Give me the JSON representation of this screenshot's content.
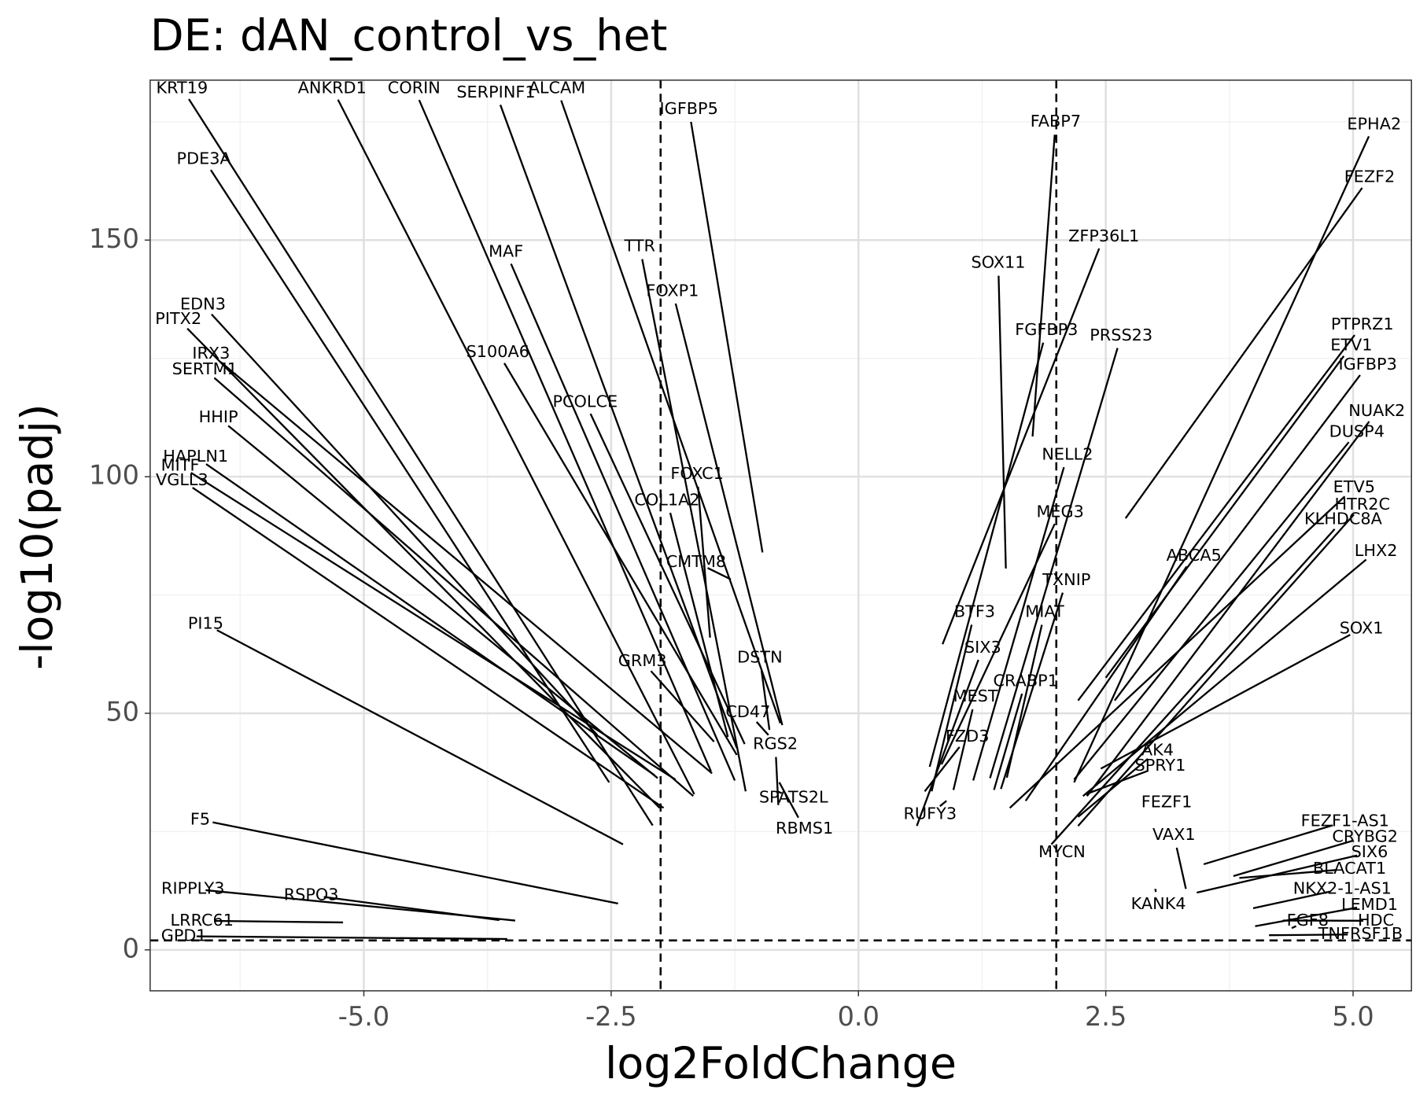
{
  "chart_data": {
    "type": "scatter",
    "title": "DE: dAN_control_vs_het",
    "x_label": "log2FoldChange",
    "y_label": "-log10(padj)",
    "xlim": [
      -7.16,
      5.59
    ],
    "ylim": [
      -8.65,
      183.8
    ],
    "xticks": [
      {
        "value": -5,
        "label": "-5.0"
      },
      {
        "value": -2.5,
        "label": "-2.5"
      },
      {
        "value": 0,
        "label": "0.0"
      },
      2.5,
      {
        "value": 5,
        "label": "5.0"
      }
    ],
    "yticks": [
      0,
      50,
      100,
      150
    ],
    "grid": true,
    "vlines": [
      -2,
      2
    ],
    "hline": 2,
    "labels": [
      "KRT19",
      "ANKRD1",
      "CORIN",
      "SERPINF1",
      "ALCAM",
      "IGFBP5",
      "PDE3A",
      "EDN3",
      "PITX2",
      "IRX3",
      "SERTM1",
      "HHIP",
      "HAPLN1",
      "MITF",
      "VGLL3",
      "PI15",
      "F5",
      "RIPPLY3",
      "RSPO3",
      "LRRC61",
      "GPD1",
      "MAF",
      "TTR",
      "FOXP1",
      "S100A6",
      "PCOLCE",
      "FOXC1",
      "COL1A2",
      "CMTM8",
      "GRM3",
      "DSTN",
      "CD47",
      "RGS2",
      "SPATS2L",
      "RBMS1",
      "FABP7",
      "EPHA2",
      "FEZF2",
      "ZFP36L1",
      "SOX11",
      "FGFBP3",
      "PRSS23",
      "PTPRZ1",
      "ETV1",
      "IGFBP3",
      "NUAK2",
      "DUSP4",
      "NELL2",
      "ETV5",
      "HTR2C",
      "KLHDC8A",
      "MEG3",
      "ABCA5",
      "LHX2",
      "TXNIP",
      "MIAT",
      "BTF3",
      "SOX1",
      "SIX3",
      "CRABP1",
      "MEST",
      "FZD3",
      "RUFY3",
      "AK4",
      "SPRY1",
      "FEZF1",
      "MYCN",
      "VAX1",
      "KANK4",
      "FEZF1-AS1",
      "CRYBG2",
      "SIX6",
      "BLACAT1",
      "NKX2-1-AS1",
      "LEMD1",
      "FGF8",
      "HDC",
      "TNFRSF1B"
    ],
    "x": [
      -2.08,
      -1.66,
      -1.49,
      -1.23,
      -0.79,
      -0.97,
      -2.52,
      -2.64,
      -2.01,
      -1.48,
      -1.67,
      -2.03,
      -2.06,
      -1.85,
      -1.97,
      -2.38,
      -2.43,
      -3.47,
      -3.63,
      -5.21,
      -3.55,
      -1.25,
      -1.14,
      -0.77,
      -1.23,
      -1.15,
      -1.5,
      -1.32,
      -1.29,
      -1.46,
      -0.9,
      -0.91,
      -0.81,
      -0.82,
      -0.8,
      1.76,
      2.18,
      2.7,
      0.85,
      1.49,
      0.72,
      1.33,
      2.22,
      2.5,
      2.59,
      2.31,
      2.18,
      1.16,
      1.53,
      2.22,
      1.95,
      0.84,
      1.69,
      2.27,
      1.44,
      1.5,
      0.74,
      2.45,
      0.59,
      1.37,
      0.96,
      0.67,
      0.89,
      2.22,
      2.3,
      3.1,
      1.92,
      3.31,
      3.0,
      3.49,
      3.79,
      3.42,
      3.85,
      3.99,
      4.01,
      4.38,
      4.29,
      4.15
    ],
    "values": [
      26.3,
      32.9,
      37.7,
      42.7,
      47.9,
      84.0,
      35.4,
      45.4,
      30.0,
      37.3,
      32.5,
      36.3,
      36.9,
      36.0,
      30.0,
      22.3,
      9.8,
      6.2,
      6.3,
      5.8,
      2.3,
      35.8,
      33.5,
      47.5,
      41.2,
      43.5,
      66.0,
      45.0,
      78.3,
      44.0,
      46.5,
      45.4,
      30.6,
      33.5,
      35.4,
      108.5,
      35.4,
      91.2,
      64.6,
      80.6,
      38.7,
      36.3,
      52.7,
      57.5,
      52.7,
      32.5,
      36.0,
      35.8,
      30.0,
      26.2,
      22.3,
      39.2,
      31.5,
      32.5,
      34.0,
      36.4,
      33.5,
      38.3,
      26.2,
      33.8,
      33.8,
      33.5,
      31.5,
      28.1,
      32.9,
      33.5,
      21.0,
      12.9,
      12.9,
      18.1,
      15.6,
      12.1,
      15.2,
      8.8,
      5.0,
      4.6,
      6.2,
      3.1
    ]
  }
}
